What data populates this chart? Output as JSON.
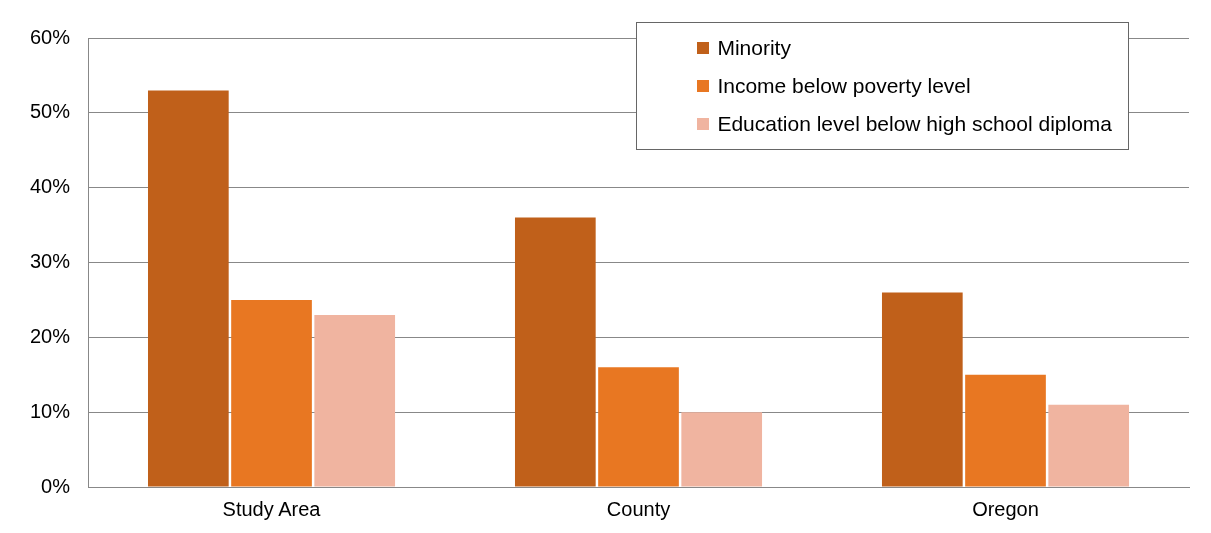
{
  "chart_data": {
    "type": "bar",
    "categories": [
      "Study Area",
      "County",
      "Oregon"
    ],
    "series": [
      {
        "name": "Minority",
        "color": "#c0601a",
        "values": [
          53,
          36,
          26
        ]
      },
      {
        "name": "Income below poverty level",
        "color": "#e87722",
        "values": [
          25,
          16,
          15
        ]
      },
      {
        "name": "Education level below high school diploma",
        "color": "#f0b4a0",
        "values": [
          23,
          10,
          11
        ]
      }
    ],
    "ylim": [
      0,
      60
    ],
    "yticks": [
      {
        "value": 0,
        "label": "0%"
      },
      {
        "value": 10,
        "label": "10%"
      },
      {
        "value": 20,
        "label": "20%"
      },
      {
        "value": 30,
        "label": "30%"
      },
      {
        "value": 40,
        "label": "40%"
      },
      {
        "value": 50,
        "label": "50%"
      },
      {
        "value": 60,
        "label": "60%"
      }
    ],
    "grid": "y",
    "legend": "top right"
  }
}
